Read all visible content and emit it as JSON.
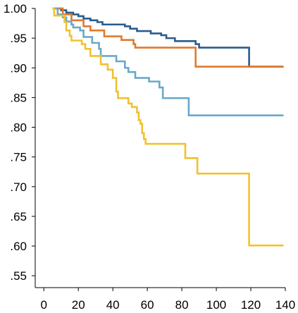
{
  "chart_data": {
    "type": "line",
    "step": true,
    "title": "",
    "xlabel": "",
    "ylabel": "",
    "xlim": [
      -5,
      140
    ],
    "ylim": [
      0.53,
      1.0
    ],
    "x_ticks": [
      0,
      20,
      40,
      60,
      80,
      100,
      120,
      140
    ],
    "x_tick_labels": [
      "0",
      "20",
      "40",
      "60",
      "80",
      "100",
      "120",
      "140"
    ],
    "y_ticks": [
      1.0,
      0.95,
      0.9,
      0.85,
      0.8,
      0.75,
      0.7,
      0.65,
      0.6,
      0.55
    ],
    "y_tick_labels": [
      "1.00",
      ".95",
      ".90",
      ".85",
      ".80",
      ".75",
      ".70",
      ".65",
      ".60",
      ".55"
    ],
    "grid": false,
    "legend": "none",
    "series": [
      {
        "color": "#2a5c8c",
        "points": [
          [
            5,
            1.0
          ],
          [
            10,
            0.997
          ],
          [
            13,
            0.993
          ],
          [
            17,
            0.99
          ],
          [
            20,
            0.987
          ],
          [
            23,
            0.983
          ],
          [
            27,
            0.98
          ],
          [
            31,
            0.977
          ],
          [
            34,
            0.973
          ],
          [
            47,
            0.97
          ],
          [
            50,
            0.966
          ],
          [
            54,
            0.962
          ],
          [
            62,
            0.958
          ],
          [
            68,
            0.955
          ],
          [
            71,
            0.95
          ],
          [
            76,
            0.945
          ],
          [
            88,
            0.94
          ],
          [
            90,
            0.934
          ],
          [
            119,
            0.934
          ],
          [
            119,
            0.902
          ],
          [
            139,
            0.902
          ]
        ]
      },
      {
        "color": "#e07a2e",
        "points": [
          [
            5,
            1.0
          ],
          [
            11,
            0.99
          ],
          [
            16,
            0.98
          ],
          [
            23,
            0.97
          ],
          [
            27,
            0.963
          ],
          [
            35,
            0.953
          ],
          [
            45,
            0.947
          ],
          [
            52,
            0.94
          ],
          [
            53,
            0.934
          ],
          [
            88,
            0.934
          ],
          [
            88,
            0.902
          ],
          [
            139,
            0.902
          ]
        ]
      },
      {
        "color": "#6ba8c9",
        "points": [
          [
            5,
            1.0
          ],
          [
            8,
            0.99
          ],
          [
            11,
            0.985
          ],
          [
            13,
            0.978
          ],
          [
            16,
            0.973
          ],
          [
            17,
            0.968
          ],
          [
            21,
            0.963
          ],
          [
            23,
            0.952
          ],
          [
            28,
            0.942
          ],
          [
            32,
            0.932
          ],
          [
            33,
            0.92
          ],
          [
            42,
            0.911
          ],
          [
            47,
            0.9
          ],
          [
            49,
            0.893
          ],
          [
            53,
            0.883
          ],
          [
            61,
            0.877
          ],
          [
            67,
            0.867
          ],
          [
            69,
            0.849
          ],
          [
            83,
            0.849
          ],
          [
            84,
            0.82
          ],
          [
            139,
            0.82
          ]
        ]
      },
      {
        "color": "#f2c12e",
        "points": [
          [
            5,
            1.0
          ],
          [
            6,
            0.988
          ],
          [
            12,
            0.977
          ],
          [
            13,
            0.963
          ],
          [
            15,
            0.954
          ],
          [
            16,
            0.946
          ],
          [
            22,
            0.94
          ],
          [
            24,
            0.932
          ],
          [
            27,
            0.92
          ],
          [
            33,
            0.906
          ],
          [
            37,
            0.897
          ],
          [
            40,
            0.883
          ],
          [
            42,
            0.86
          ],
          [
            43,
            0.849
          ],
          [
            49,
            0.84
          ],
          [
            51,
            0.834
          ],
          [
            54,
            0.825
          ],
          [
            55,
            0.812
          ],
          [
            56,
            0.806
          ],
          [
            57,
            0.79
          ],
          [
            58,
            0.78
          ],
          [
            59,
            0.772
          ],
          [
            82,
            0.772
          ],
          [
            82,
            0.748
          ],
          [
            89,
            0.748
          ],
          [
            89,
            0.722
          ],
          [
            119,
            0.722
          ],
          [
            119,
            0.601
          ],
          [
            139,
            0.601
          ]
        ]
      }
    ]
  }
}
